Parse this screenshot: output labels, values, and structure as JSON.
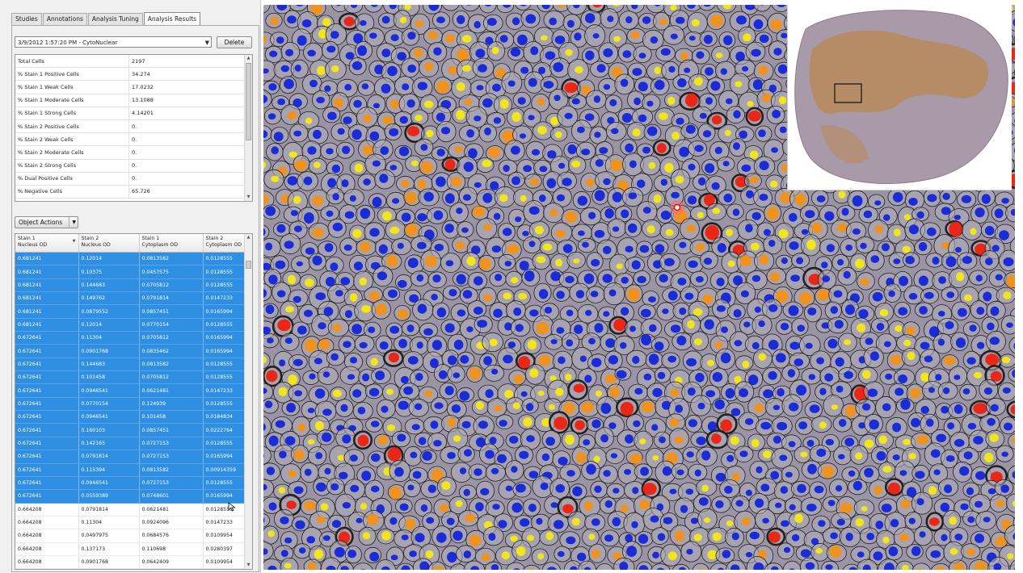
{
  "tabs": [
    {
      "label": "Studies",
      "active": false
    },
    {
      "label": "Annotations",
      "active": false
    },
    {
      "label": "Analysis Tuning",
      "active": false
    },
    {
      "label": "Analysis Results",
      "active": true
    }
  ],
  "results_selector": {
    "value": "3/9/2012 1:57:20 PM - CytoNuclear",
    "delete_label": "Delete"
  },
  "stats": [
    {
      "label": "Total Cells",
      "value": "2197"
    },
    {
      "label": "% Stain 1 Positive Cells",
      "value": "34.274"
    },
    {
      "label": "% Stain 1 Weak Cells",
      "value": "17.0232"
    },
    {
      "label": "% Stain 1 Moderate Cells",
      "value": "13.1088"
    },
    {
      "label": "% Stain 1 Strong Cells",
      "value": "4.14201"
    },
    {
      "label": "% Stain 2 Positive Cells",
      "value": "0."
    },
    {
      "label": "% Stain 2 Weak Cells",
      "value": "0."
    },
    {
      "label": "% Stain 2 Moderate Cells",
      "value": "0."
    },
    {
      "label": "% Stain 2 Strong Cells",
      "value": "0."
    },
    {
      "label": "% Dual Positive Cells",
      "value": "0."
    },
    {
      "label": "% Negative Cells",
      "value": "65.726"
    }
  ],
  "object_actions_label": "Object Actions",
  "grid": {
    "columns": [
      {
        "line1": "Stain 1",
        "line2": "Nucleus OD"
      },
      {
        "line1": "Stain 2",
        "line2": "Nucleus OD"
      },
      {
        "line1": "Stain 1",
        "line2": "Cytoplasm OD"
      },
      {
        "line1": "Stain 2",
        "line2": "Cytoplasm OD"
      }
    ],
    "rows": [
      [
        "0.681241",
        "0.12014",
        "0.0813582",
        "0.0128555"
      ],
      [
        "0.681241",
        "0.10375",
        "0.0457575",
        "0.0128555"
      ],
      [
        "0.681241",
        "0.144683",
        "0.0705812",
        "0.0128555"
      ],
      [
        "0.681241",
        "0.149762",
        "0.0791814",
        "0.0147233"
      ],
      [
        "0.681241",
        "0.0879552",
        "0.0857451",
        "0.0165994"
      ],
      [
        "0.681241",
        "0.12014",
        "0.0770154",
        "0.0128555"
      ],
      [
        "0.672641",
        "0.11304",
        "0.0705812",
        "0.0165994"
      ],
      [
        "0.672641",
        "0.0901768",
        "0.0835462",
        "0.0165994"
      ],
      [
        "0.672641",
        "0.144683",
        "0.0813582",
        "0.0128555"
      ],
      [
        "0.672641",
        "0.101458",
        "0.0705812",
        "0.0128555"
      ],
      [
        "0.672641",
        "0.0946541",
        "0.0621481",
        "0.0147233"
      ],
      [
        "0.672641",
        "0.0770154",
        "0.124939",
        "0.0128555"
      ],
      [
        "0.672641",
        "0.0946541",
        "0.101458",
        "0.0184834"
      ],
      [
        "0.672641",
        "0.160103",
        "0.0857451",
        "0.0222764"
      ],
      [
        "0.672641",
        "0.142165",
        "0.0727153",
        "0.0128555"
      ],
      [
        "0.672641",
        "0.0791814",
        "0.0727153",
        "0.0165994"
      ],
      [
        "0.672641",
        "0.115394",
        "0.0813582",
        "0.00914359"
      ],
      [
        "0.672641",
        "0.0946541",
        "0.0727153",
        "0.0128555"
      ],
      [
        "0.672641",
        "0.0559389",
        "0.0748601",
        "0.0165994"
      ],
      [
        "0.664208",
        "0.0791814",
        "0.0621481",
        "0.0128555"
      ],
      [
        "0.664208",
        "0.11304",
        "0.0924096",
        "0.0147233"
      ],
      [
        "0.664208",
        "0.0497975",
        "0.0684576",
        "0.0109954"
      ],
      [
        "0.664208",
        "0.137173",
        "0.110698",
        "0.0280397"
      ],
      [
        "0.664208",
        "0.0901768",
        "0.0642409",
        "0.0109954"
      ]
    ],
    "selected_row_count": 19
  },
  "colors": {
    "selection": "#2f8fe3",
    "negative_nucleus": "#1a2bd8",
    "weak": "#f2e61a",
    "moderate": "#f0921e",
    "strong": "#ea2617",
    "tissue": "#9a94a4",
    "membrane": "#222222",
    "thumbnail_stain": "#b98a5a"
  },
  "icons": {
    "selection_marker": "target-icon",
    "cursor": "cursor-icon"
  }
}
